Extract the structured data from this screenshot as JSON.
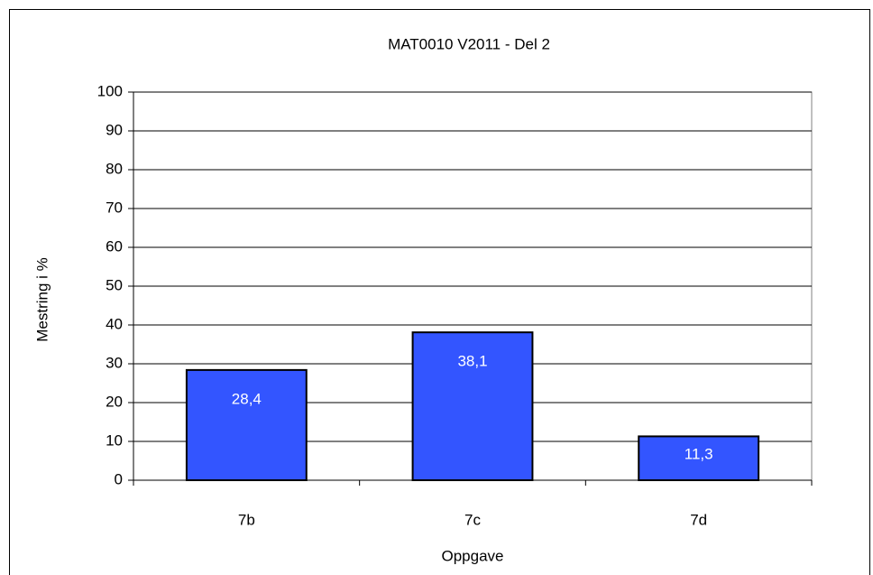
{
  "chart_data": {
    "type": "bar",
    "title": "MAT0010 V2011 - Del 2",
    "x_label": "Oppgave",
    "y_label": "Mestring i %",
    "categories": [
      "7b",
      "7c",
      "7d"
    ],
    "values": [
      28.4,
      38.1,
      11.3
    ],
    "value_labels": [
      "28,4",
      "38,1",
      "11,3"
    ],
    "color": "#3355ff",
    "ylim": [
      0,
      100
    ],
    "yticks": [
      0,
      10,
      20,
      30,
      40,
      50,
      60,
      70,
      80,
      90,
      100
    ],
    "grid": true
  }
}
